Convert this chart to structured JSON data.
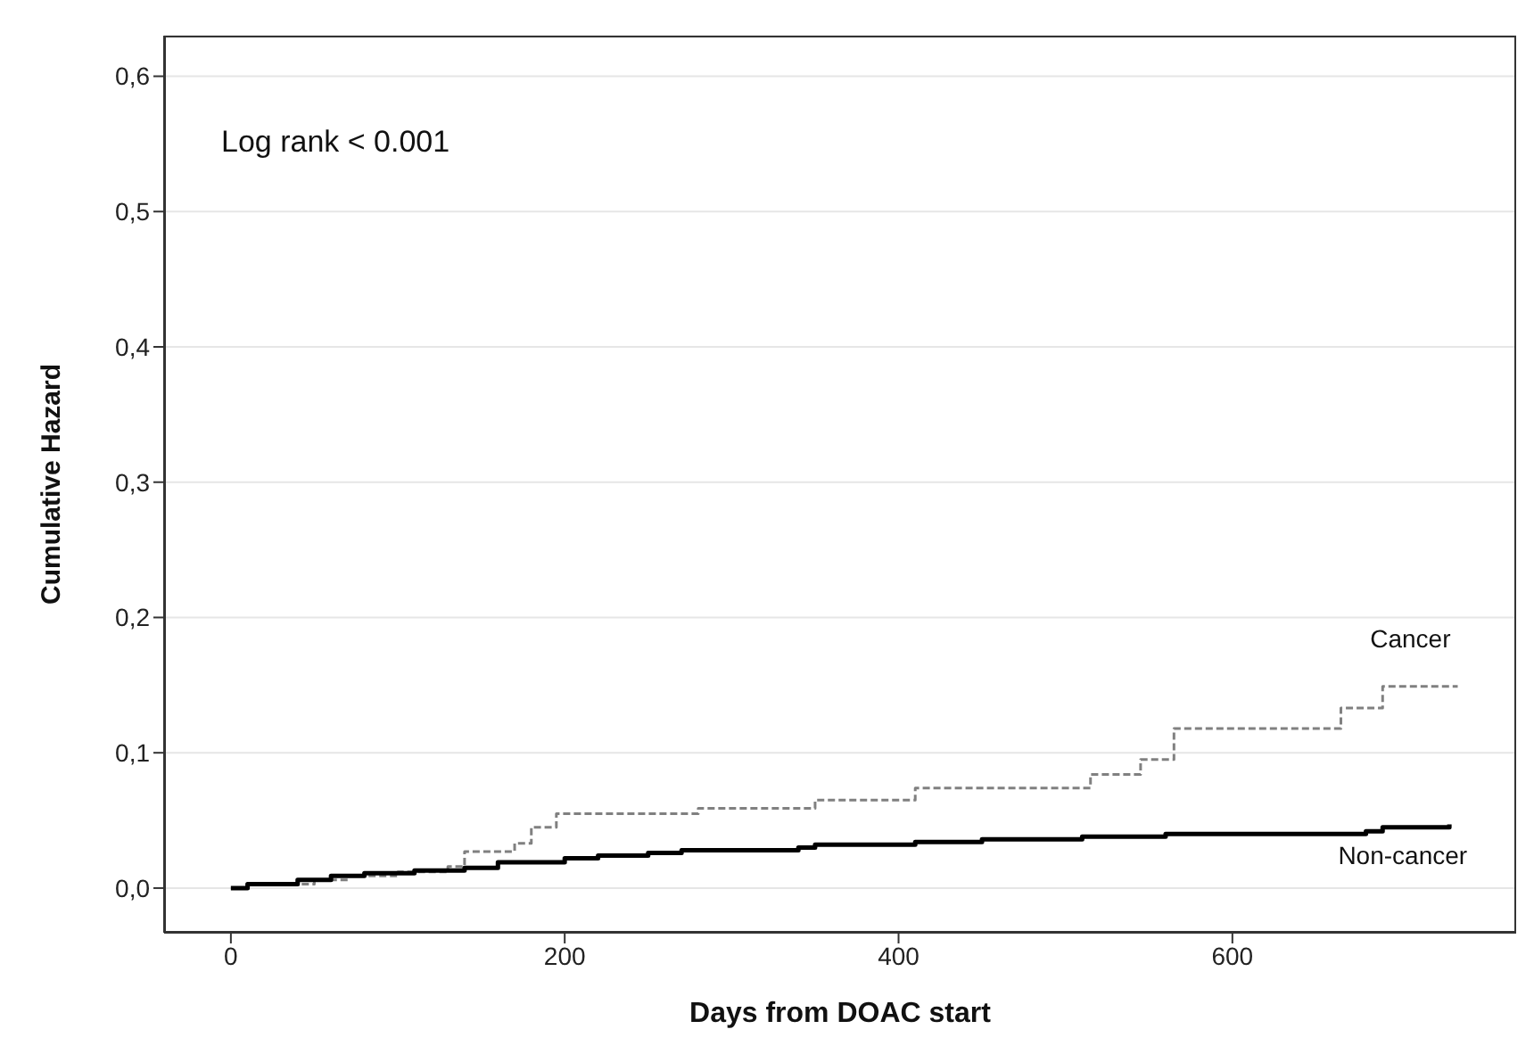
{
  "chart_data": {
    "type": "step",
    "xlabel": "Days from DOAC start",
    "ylabel": "Cumulative Hazard",
    "annotations": [
      "Log rank < 0.001"
    ],
    "xlim": [
      -40,
      770
    ],
    "xticks": [
      0,
      200,
      400,
      600
    ],
    "ylim": [
      -0.033,
      0.63
    ],
    "yticks": [
      {
        "value": 0,
        "label": "0,0"
      },
      {
        "value": 0.1,
        "label": "0,1"
      },
      {
        "value": 0.2,
        "label": "0,2"
      },
      {
        "value": 0.3,
        "label": "0,3"
      },
      {
        "value": 0.4,
        "label": "0,4"
      },
      {
        "value": 0.5,
        "label": "0,5"
      },
      {
        "value": 0.6,
        "label": "0,6"
      }
    ],
    "grid": "y",
    "series": [
      {
        "name": "Cancer",
        "color": "#808080",
        "line_style": "dashed",
        "x": [
          0,
          10,
          50,
          70,
          100,
          130,
          140,
          170,
          180,
          195,
          280,
          350,
          410,
          515,
          545,
          565,
          665,
          690,
          735
        ],
        "values": [
          0,
          0.003,
          0.006,
          0.009,
          0.012,
          0.016,
          0.027,
          0.033,
          0.045,
          0.055,
          0.059,
          0.065,
          0.074,
          0.084,
          0.095,
          0.118,
          0.133,
          0.149,
          0.149
        ]
      },
      {
        "name": "Non-cancer",
        "color": "#000000",
        "line_style": "solid",
        "x": [
          0,
          10,
          40,
          60,
          80,
          110,
          140,
          160,
          200,
          220,
          250,
          270,
          340,
          350,
          410,
          450,
          510,
          560,
          680,
          690,
          730
        ],
        "values": [
          0,
          0.003,
          0.006,
          0.009,
          0.011,
          0.013,
          0.015,
          0.019,
          0.022,
          0.024,
          0.026,
          0.028,
          0.03,
          0.032,
          0.034,
          0.036,
          0.038,
          0.04,
          0.042,
          0.045,
          0.047
        ]
      }
    ]
  }
}
